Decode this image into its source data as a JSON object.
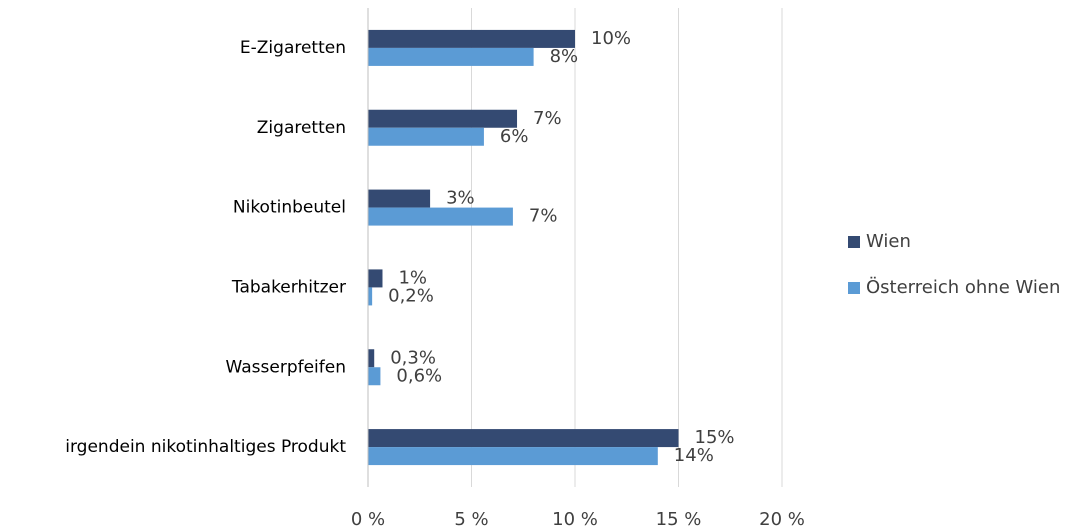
{
  "chart_data": {
    "type": "bar",
    "orientation": "horizontal",
    "categories": [
      "E-Zigaretten",
      "Zigaretten",
      "Nikotinbeutel",
      "Tabakerhitzer",
      "Wasserpfeifen",
      "irgendein nikotinhaltiges Produkt"
    ],
    "series": [
      {
        "name": "Wien",
        "color": "#344a72",
        "values": [
          10,
          7.2,
          3,
          0.7,
          0.3,
          15
        ],
        "value_labels": [
          "10%",
          "7%",
          "3%",
          "1%",
          "0,3%",
          "15%"
        ]
      },
      {
        "name": "Österreich ohne Wien",
        "color": "#5b9bd5",
        "values": [
          8,
          5.6,
          7,
          0.2,
          0.6,
          14
        ],
        "value_labels": [
          "8%",
          "6%",
          "7%",
          "0,2%",
          "0,6%",
          "14%"
        ]
      }
    ],
    "xlim": [
      0,
      20
    ],
    "xticks": [
      {
        "value": 0,
        "label": "0 %"
      },
      {
        "value": 5,
        "label": "5 %"
      },
      {
        "value": 10,
        "label": "10 %"
      },
      {
        "value": 15,
        "label": "15 %"
      },
      {
        "value": 20,
        "label": "20 %"
      }
    ],
    "grid": true,
    "legend": "right"
  }
}
